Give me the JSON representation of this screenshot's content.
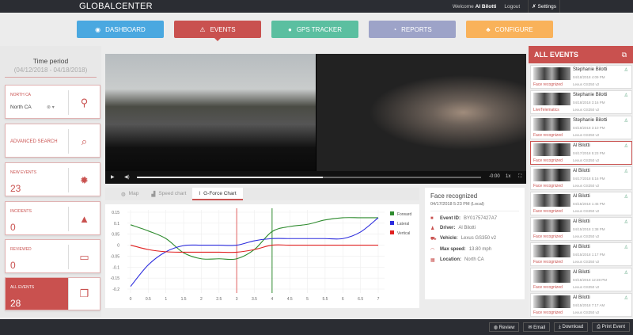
{
  "header": {
    "logo": "GLOBALCENTER",
    "welcome": "Welcome",
    "user": "Al Bilotti",
    "logout": "Logout",
    "settings": "Settings"
  },
  "nav": [
    {
      "label": "DASHBOARD",
      "color": "#4aa8e0"
    },
    {
      "label": "EVENTS",
      "color": "#c9514f"
    },
    {
      "label": "GPS TRACKER",
      "color": "#5bbfa0"
    },
    {
      "label": "REPORTS",
      "color": "#9da3c8"
    },
    {
      "label": "CONFIGURE",
      "color": "#f9b25a"
    }
  ],
  "sidebar": {
    "time_label": "Time period",
    "time_range": "(04/12/2018 - 04/18/2018)",
    "region_label": "NORTH CA",
    "region_value": "North CA",
    "advanced_search": "ADVANCED SEARCH",
    "new_events_label": "NEW EVENTS",
    "new_events": "23",
    "incidents_label": "INCIDENTS",
    "incidents": "0",
    "reviewed_label": "REVIEWED",
    "reviewed": "0",
    "all_events_label": "ALL EVENTS",
    "all_events": "28"
  },
  "video": {
    "time": "-0:00",
    "speed": "1x",
    "progress": 0.54
  },
  "tabs": [
    {
      "label": "Map"
    },
    {
      "label": "Speed chart"
    },
    {
      "label": "G-Force Chart"
    }
  ],
  "info": {
    "title": "Face recognized",
    "datetime": "04/17/2018 5:23 PM (Local)",
    "event_id_label": "Event ID:",
    "event_id": "BY01757427A7",
    "driver_label": "Driver:",
    "driver": "Al Bilotti",
    "vehicle_label": "Vehicle:",
    "vehicle": "Lexus GS350 v2",
    "speed_label": "Max speed:",
    "speed": "13.80 mph",
    "location_label": "Location:",
    "location": "North CA"
  },
  "events_panel": {
    "title": "ALL EVENTS",
    "items": [
      {
        "name": "Stephanie Bilotti",
        "date": "04/18/2018 4:09 PM",
        "vehicle": "Lexus GS350 v2",
        "type": "Face recognized"
      },
      {
        "name": "Stephanie Bilotti",
        "date": "04/18/2018 3:16 PM",
        "vehicle": "Lexus GS350 v2",
        "type": "LiveTelematics"
      },
      {
        "name": "Stephanie Bilotti",
        "date": "04/18/2018 3:10 PM",
        "vehicle": "Lexus GS350 v2",
        "type": "Face recognized"
      },
      {
        "name": "Al Bilotti",
        "date": "04/17/2018 5:23 PM",
        "vehicle": "Lexus GS350 v2",
        "type": "Face recognized"
      },
      {
        "name": "Al Bilotti",
        "date": "04/17/2018 5:16 PM",
        "vehicle": "Lexus GS350 v2",
        "type": "Face recognized"
      },
      {
        "name": "Al Bilotti",
        "date": "04/15/2018 1:45 PM",
        "vehicle": "Lexus GS350 v2",
        "type": "Face recognized"
      },
      {
        "name": "Al Bilotti",
        "date": "04/15/2018 1:38 PM",
        "vehicle": "Lexus GS350 v2",
        "type": "Face recognized"
      },
      {
        "name": "Al Bilotti",
        "date": "04/15/2018 1:17 PM",
        "vehicle": "Lexus GS350 v2",
        "type": "Face recognized"
      },
      {
        "name": "Al Bilotti",
        "date": "04/15/2018 12:28 PM",
        "vehicle": "Lexus GS350 v2",
        "type": "Face recognized"
      },
      {
        "name": "Al Bilotti",
        "date": "04/15/2018 7:17 AM",
        "vehicle": "Lexus GS350 v2",
        "type": "Face recognized"
      },
      {
        "name": "Al Bilotti",
        "date": "",
        "vehicle": "",
        "type": ""
      }
    ]
  },
  "footer": {
    "review": "Review",
    "email": "Email",
    "download": "Download",
    "print": "Print Event"
  },
  "chart_data": {
    "type": "line",
    "x": [
      0,
      0.5,
      1,
      1.5,
      2,
      2.5,
      3,
      3.5,
      4,
      4.5,
      5,
      5.5,
      6,
      6.5,
      7
    ],
    "xticks": [
      "0",
      "0.5",
      "1",
      "1.5",
      "2",
      "2.5",
      "3",
      "3.5",
      "4",
      "4.5",
      "5",
      "5.5",
      "6",
      "6.5",
      "7"
    ],
    "yticks": [
      "0.15",
      "0.1",
      "0.05",
      "0",
      "-0.05",
      "-0.1",
      "-0.15",
      "-0.2"
    ],
    "ylim": [
      -0.2,
      0.15
    ],
    "xlim": [
      0,
      7
    ],
    "grid": true,
    "legend": "right",
    "markers": [
      {
        "x": 3,
        "color": "#e06060"
      },
      {
        "x": 4,
        "color": "#2e8b2e"
      }
    ],
    "series": [
      {
        "name": "Forward",
        "color": "#2e8b2e",
        "values": [
          0.093,
          0.065,
          0.03,
          -0.035,
          -0.062,
          -0.062,
          -0.062,
          -0.02,
          0.062,
          0.085,
          0.095,
          0.115,
          0.125,
          0.125,
          0.125
        ]
      },
      {
        "name": "Lateral",
        "color": "#2b2bdd",
        "values": [
          -0.188,
          -0.09,
          -0.03,
          -0.002,
          0,
          0,
          0,
          0.02,
          0.03,
          0.03,
          0.03,
          0.03,
          0.03,
          0.06,
          0.125
        ]
      },
      {
        "name": "Vertical",
        "color": "#e02020",
        "values": [
          0,
          -0.02,
          -0.03,
          -0.032,
          -0.032,
          -0.032,
          -0.032,
          -0.02,
          0,
          0,
          0,
          0,
          0,
          0,
          0
        ]
      }
    ]
  }
}
